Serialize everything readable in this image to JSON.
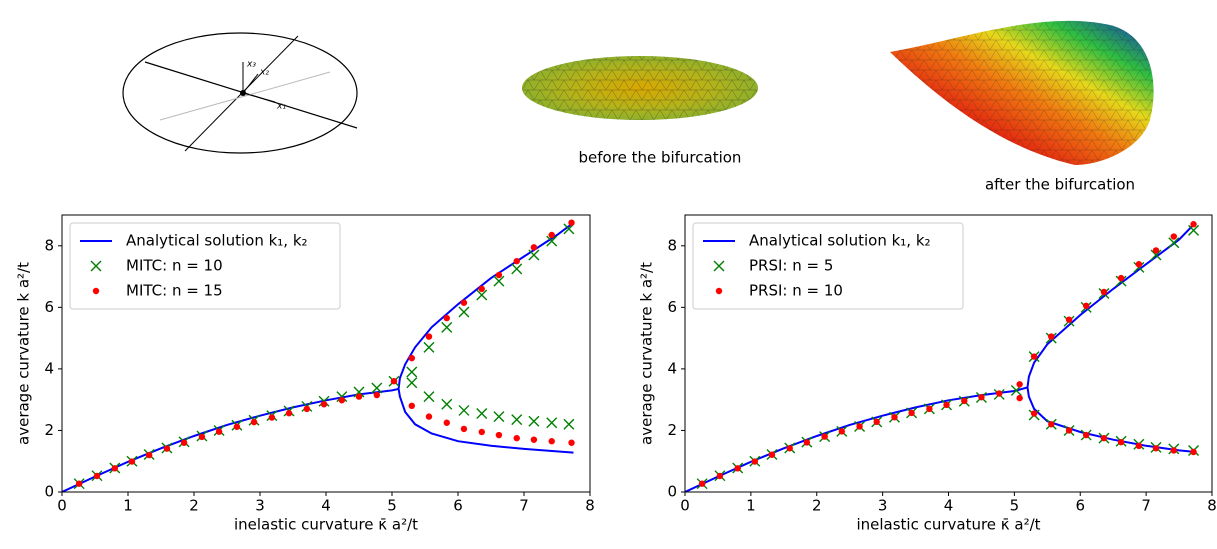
{
  "illustrations": {
    "axis_labels": [
      "x₃",
      "x₂",
      "x₁"
    ],
    "captions": [
      "before the bifurcation",
      "after the bifurcation"
    ]
  },
  "chart_data": [
    {
      "type": "line",
      "xlabel": "inelastic curvature κ̄ a²/t",
      "ylabel": "average curvature k a²/t",
      "xlim": [
        0,
        8
      ],
      "ylim": [
        0,
        9
      ],
      "xticks": [
        0,
        1,
        2,
        3,
        4,
        5,
        6,
        7,
        8
      ],
      "yticks": [
        0,
        2,
        4,
        6,
        8
      ],
      "legend": "upper left",
      "series": [
        {
          "name": "Analytical solution k₁, k₂",
          "color": "#0000ff",
          "style": "line",
          "x": [
            0,
            0.5,
            1,
            1.5,
            2,
            2.5,
            3,
            3.5,
            4,
            4.5,
            5,
            5.1,
            5.12,
            5.2,
            5.35,
            5.6,
            6,
            6.5,
            7,
            7.5,
            7.75,
            null,
            5.1,
            5.12,
            5.2,
            5.35,
            5.6,
            6,
            6.5,
            7,
            7.5,
            7.75
          ],
          "y": [
            0,
            0.5,
            0.98,
            1.42,
            1.82,
            2.18,
            2.48,
            2.75,
            2.98,
            3.17,
            3.3,
            3.35,
            3.1,
            2.6,
            2.2,
            1.9,
            1.65,
            1.5,
            1.4,
            1.32,
            1.28,
            null,
            3.35,
            3.7,
            4.15,
            4.7,
            5.35,
            6.1,
            6.95,
            7.65,
            8.35,
            8.75
          ]
        },
        {
          "name": "MITC: n = 10",
          "color": "#008000",
          "style": "cross",
          "x": [
            0.26,
            0.53,
            0.8,
            1.06,
            1.32,
            1.59,
            1.85,
            2.12,
            2.38,
            2.65,
            2.91,
            3.18,
            3.44,
            3.71,
            3.97,
            4.24,
            4.5,
            4.77,
            5.03,
            5.3,
            5.3,
            5.56,
            5.56,
            5.83,
            5.83,
            6.09,
            6.09,
            6.36,
            6.36,
            6.62,
            6.62,
            6.89,
            6.89,
            7.15,
            7.15,
            7.42,
            7.42,
            7.68,
            7.68
          ],
          "y": [
            0.27,
            0.53,
            0.78,
            1.0,
            1.22,
            1.43,
            1.63,
            1.82,
            2.0,
            2.17,
            2.33,
            2.48,
            2.63,
            2.78,
            2.95,
            3.1,
            3.25,
            3.38,
            3.6,
            3.9,
            3.55,
            4.7,
            3.1,
            5.35,
            2.85,
            5.85,
            2.65,
            6.4,
            2.55,
            6.85,
            2.45,
            7.25,
            2.35,
            7.7,
            2.3,
            8.15,
            2.25,
            8.55,
            2.2
          ]
        },
        {
          "name": "MITC: n = 15",
          "color": "#ff0000",
          "style": "dot",
          "x": [
            0.26,
            0.53,
            0.8,
            1.06,
            1.32,
            1.59,
            1.85,
            2.12,
            2.38,
            2.65,
            2.91,
            3.18,
            3.44,
            3.71,
            3.97,
            4.24,
            4.5,
            4.77,
            5.03,
            5.3,
            5.3,
            5.56,
            5.56,
            5.83,
            5.83,
            6.09,
            6.09,
            6.36,
            6.36,
            6.62,
            6.62,
            6.89,
            6.89,
            7.15,
            7.15,
            7.42,
            7.42,
            7.72,
            7.72
          ],
          "y": [
            0.27,
            0.52,
            0.77,
            0.99,
            1.2,
            1.41,
            1.6,
            1.79,
            1.96,
            2.12,
            2.27,
            2.42,
            2.56,
            2.7,
            2.85,
            2.98,
            3.1,
            3.15,
            3.6,
            4.35,
            2.8,
            5.05,
            2.45,
            5.65,
            2.25,
            6.15,
            2.05,
            6.6,
            1.95,
            7.05,
            1.85,
            7.5,
            1.75,
            7.95,
            1.7,
            8.35,
            1.65,
            8.75,
            1.6
          ]
        }
      ]
    },
    {
      "type": "line",
      "xlabel": "inelastic curvature κ̄ a²/t",
      "ylabel": "average curvature k a²/t",
      "xlim": [
        0,
        8
      ],
      "ylim": [
        0,
        9
      ],
      "xticks": [
        0,
        1,
        2,
        3,
        4,
        5,
        6,
        7,
        8
      ],
      "yticks": [
        0,
        2,
        4,
        6,
        8
      ],
      "legend": "upper left",
      "series": [
        {
          "name": "Analytical solution k₁, k₂",
          "color": "#0000ff",
          "style": "line",
          "x": [
            0,
            0.5,
            1,
            1.5,
            2,
            2.5,
            3,
            3.5,
            4,
            4.5,
            5,
            5.2,
            5.22,
            5.3,
            5.5,
            6,
            6.5,
            7,
            7.5,
            7.75,
            null,
            5.2,
            5.22,
            5.3,
            5.5,
            6,
            6.5,
            7,
            7.5,
            7.75
          ],
          "y": [
            0,
            0.5,
            0.98,
            1.42,
            1.82,
            2.18,
            2.48,
            2.75,
            2.98,
            3.15,
            3.28,
            3.4,
            3.1,
            2.7,
            2.3,
            1.95,
            1.7,
            1.5,
            1.35,
            1.3,
            null,
            3.4,
            3.75,
            4.2,
            4.8,
            5.75,
            6.6,
            7.4,
            8.2,
            8.75
          ]
        },
        {
          "name": "PRSI: n = 5",
          "color": "#008000",
          "style": "cross",
          "x": [
            0.26,
            0.53,
            0.8,
            1.06,
            1.32,
            1.59,
            1.85,
            2.12,
            2.38,
            2.65,
            2.91,
            3.18,
            3.44,
            3.71,
            3.97,
            4.24,
            4.5,
            4.77,
            5.03,
            5.3,
            5.3,
            5.56,
            5.56,
            5.83,
            5.83,
            6.09,
            6.09,
            6.36,
            6.36,
            6.62,
            6.62,
            6.89,
            6.89,
            7.15,
            7.15,
            7.42,
            7.42,
            7.72,
            7.72
          ],
          "y": [
            0.27,
            0.53,
            0.78,
            1.0,
            1.22,
            1.43,
            1.62,
            1.8,
            1.97,
            2.13,
            2.28,
            2.43,
            2.57,
            2.7,
            2.83,
            2.95,
            3.07,
            3.17,
            3.3,
            4.4,
            2.5,
            5.0,
            2.2,
            5.55,
            2.0,
            6.0,
            1.85,
            6.45,
            1.75,
            6.85,
            1.65,
            7.3,
            1.55,
            7.7,
            1.45,
            8.1,
            1.4,
            8.5,
            1.35
          ]
        },
        {
          "name": "PRSI: n = 10",
          "color": "#ff0000",
          "style": "dot",
          "x": [
            0.26,
            0.53,
            0.8,
            1.06,
            1.32,
            1.59,
            1.85,
            2.12,
            2.38,
            2.65,
            2.91,
            3.18,
            3.44,
            3.71,
            3.97,
            4.24,
            4.5,
            4.77,
            5.08,
            5.08,
            5.3,
            5.3,
            5.56,
            5.56,
            5.83,
            5.83,
            6.09,
            6.09,
            6.36,
            6.36,
            6.62,
            6.62,
            6.89,
            6.89,
            7.15,
            7.15,
            7.42,
            7.42,
            7.72,
            7.72
          ],
          "y": [
            0.27,
            0.52,
            0.77,
            0.99,
            1.21,
            1.42,
            1.61,
            1.8,
            1.97,
            2.13,
            2.28,
            2.43,
            2.57,
            2.7,
            2.83,
            2.96,
            3.08,
            3.2,
            3.5,
            3.05,
            4.4,
            2.55,
            5.05,
            2.2,
            5.6,
            2.0,
            6.05,
            1.85,
            6.5,
            1.75,
            6.95,
            1.62,
            7.4,
            1.5,
            7.85,
            1.42,
            8.3,
            1.35,
            8.7,
            1.3
          ]
        }
      ]
    }
  ]
}
